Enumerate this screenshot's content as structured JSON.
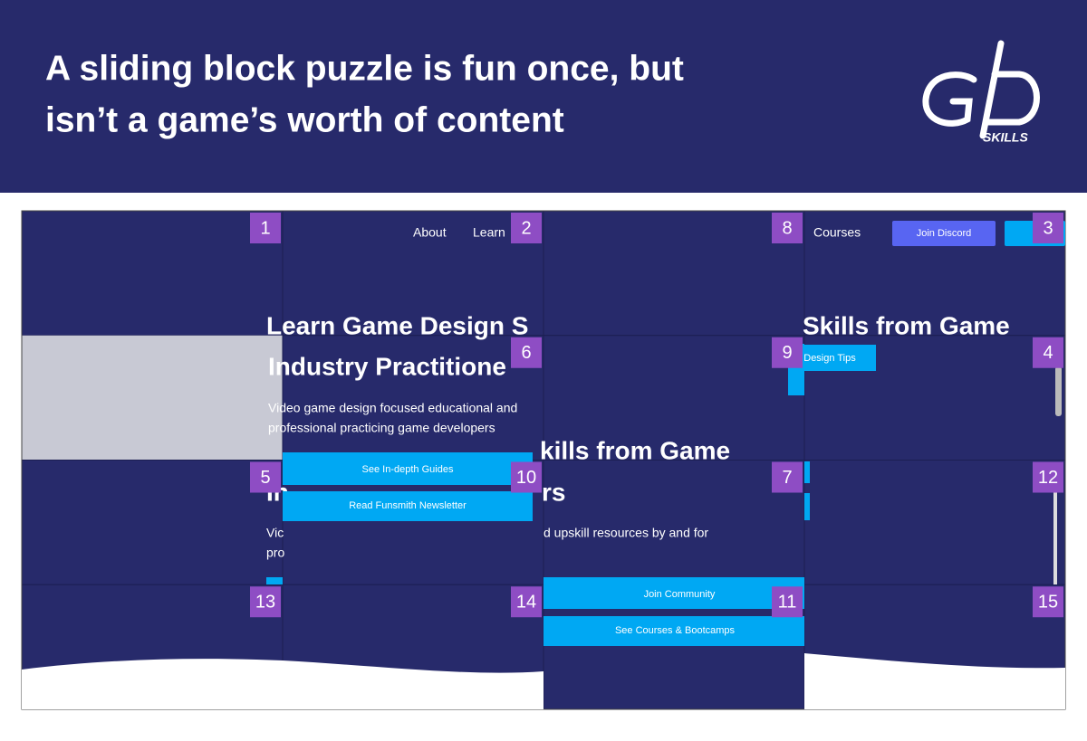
{
  "header": {
    "title_lines": [
      "A sliding block puzzle is fun once, but",
      "isn’t a game’s worth of content"
    ],
    "logo_text": "SKILLS"
  },
  "puzzle": {
    "tiles": [
      1,
      2,
      8,
      3,
      null,
      6,
      9,
      4,
      5,
      10,
      7,
      12,
      13,
      14,
      11,
      15
    ]
  },
  "screenshot": {
    "nav": [
      "About",
      "Learn",
      "Courses"
    ],
    "discord_button": "Join Discord",
    "heading_fragments": [
      "Learn Game Design S",
      "Industry Practitione",
      "Skills from Game",
      "kills from Game",
      "rs",
      "In"
    ],
    "body_fragments": [
      "Video game design focused educational and",
      "professional practicing game developers",
      "d upskill resources by and for",
      "Vic",
      "pro"
    ],
    "buttons": [
      "Design Tips",
      "See In-depth Guides",
      "Read Funsmith Newsletter",
      "Join Community",
      "See Courses & Bootcamps"
    ]
  }
}
